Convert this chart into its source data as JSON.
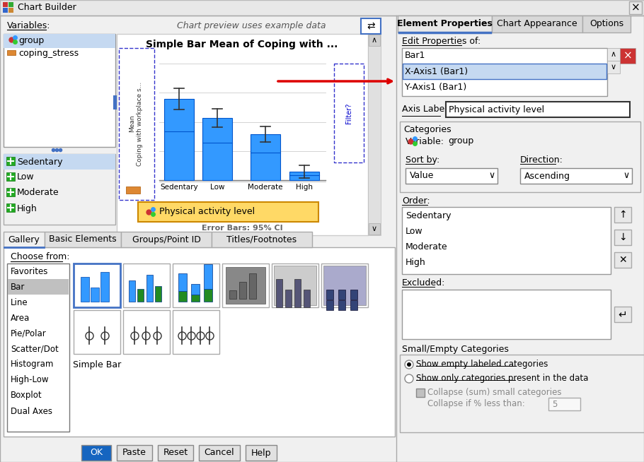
{
  "title": "Chart Builder",
  "bg_color": "#f0f0f0",
  "white": "#ffffff",
  "preview_title": "Simple Bar Mean of Coping with ...",
  "bar_categories": [
    "Sedentary",
    "Low",
    "Moderate",
    "High"
  ],
  "bar_color": "#3399ff",
  "bar_dark_line_color": "#0055cc",
  "variables": [
    "group",
    "coping_stress"
  ],
  "legend_items": [
    "Sedentary",
    "Low",
    "Moderate",
    "High"
  ],
  "gallery_tabs": [
    "Gallery",
    "Basic Elements",
    "Groups/Point ID",
    "Titles/Footnotes"
  ],
  "choose_from": [
    "Favorites",
    "Bar",
    "Line",
    "Area",
    "Pie/Polar",
    "Scatter/Dot",
    "Histogram",
    "High-Low",
    "Boxplot",
    "Dual Axes"
  ],
  "simple_bar_label": "Simple Bar",
  "tab_labels": [
    "Element Properties",
    "Chart Appearance",
    "Options"
  ],
  "tab_active": "Element Properties",
  "edit_properties_list": [
    "Bar1",
    "X-Axis1 (Bar1)",
    "Y-Axis1 (Bar1)"
  ],
  "selected_property": "X-Axis1 (Bar1)",
  "axis_label_value": "Physical activity level",
  "group_text": "group",
  "sort_by_value": "Value",
  "direction_value": "Ascending",
  "order_items": [
    "Sedentary",
    "Low",
    "Moderate",
    "High"
  ],
  "radio1": "Show empty labeled categories",
  "radio2": "Show only categories present in the data",
  "checkbox1": "Collapse (sum) small categories",
  "checkbox1_label": "Collapse if % less than:",
  "collapse_value": "5",
  "bottom_buttons": [
    "OK",
    "Paste",
    "Reset",
    "Cancel",
    "Help"
  ],
  "ok_color": "#1565c0",
  "ok_text_color": "#ffffff",
  "button_color": "#e1e1e1",
  "arrow_color": "#dd0000",
  "physical_activity_box_color": "#ffd966",
  "filter_color": "#0000cc",
  "legend_green": "#22aa22",
  "icon_bar1_color": "#3399ff",
  "icon_bar2_color": "#228b22"
}
